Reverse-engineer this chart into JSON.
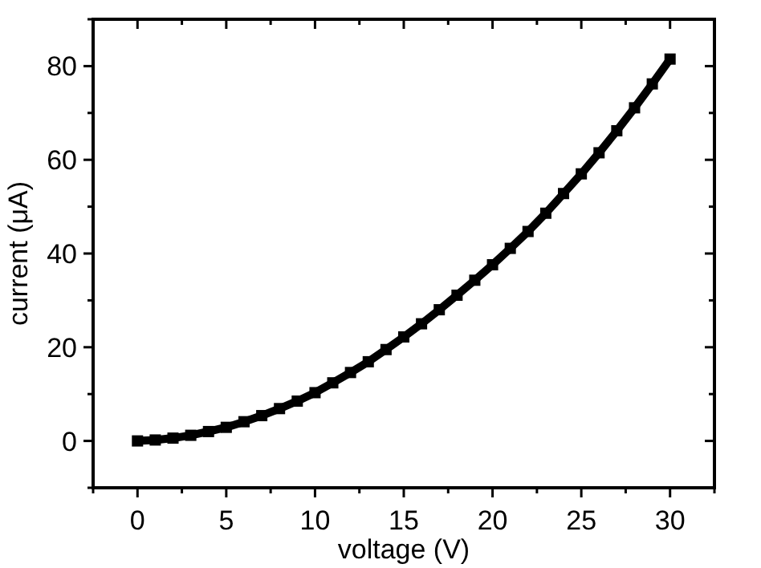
{
  "chart_data": {
    "type": "line",
    "xlabel": "voltage (V)",
    "ylabel": "current (μA)",
    "marker": "square",
    "line_style": "solid",
    "xlim": [
      -2.5,
      32.5
    ],
    "xticks": [
      0,
      5,
      10,
      15,
      20,
      25,
      30
    ],
    "ylim": [
      -10,
      90
    ],
    "yticks": [
      0,
      20,
      40,
      60,
      80
    ],
    "series": [
      {
        "color": "#000000",
        "x": [
          0,
          1,
          2,
          3,
          4,
          5,
          6,
          7,
          8,
          9,
          10,
          11,
          12,
          13,
          14,
          15,
          16,
          17,
          18,
          19,
          20,
          21,
          22,
          23,
          24,
          25,
          26,
          27,
          28,
          29,
          30
        ],
        "values": [
          0,
          0.2,
          0.6,
          1.2,
          2,
          2.9,
          4.1,
          5.4,
          6.9,
          8.5,
          10.3,
          12.4,
          14.6,
          16.9,
          19.5,
          22.2,
          25,
          28,
          31.1,
          34.3,
          37.6,
          41.1,
          44.7,
          48.6,
          52.8,
          57,
          61.5,
          66.2,
          71.1,
          76.2,
          81.5
        ]
      }
    ]
  }
}
